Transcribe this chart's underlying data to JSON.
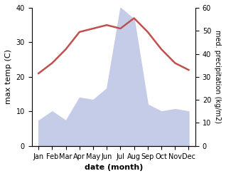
{
  "months": [
    "Jan",
    "Feb",
    "Mar",
    "Apr",
    "May",
    "Jun",
    "Jul",
    "Aug",
    "Sep",
    "Oct",
    "Nov",
    "Dec"
  ],
  "temperature": [
    21,
    24,
    28,
    33,
    34,
    35,
    34,
    37,
    33,
    28,
    24,
    22
  ],
  "precipitation": [
    11,
    15,
    11,
    21,
    20,
    25,
    60,
    55,
    18,
    15,
    16,
    15
  ],
  "temp_color": "#c0504d",
  "precip_fill_color": "#c5cce8",
  "xlabel": "date (month)",
  "ylabel_left": "max temp (C)",
  "ylabel_right": "med. precipitation (kg/m2)",
  "ylim_left": [
    0,
    40
  ],
  "ylim_right": [
    0,
    60
  ],
  "yticks_left": [
    0,
    10,
    20,
    30,
    40
  ],
  "yticks_right": [
    0,
    10,
    20,
    30,
    40,
    50,
    60
  ],
  "background_color": "#ffffff",
  "line_width": 1.8
}
